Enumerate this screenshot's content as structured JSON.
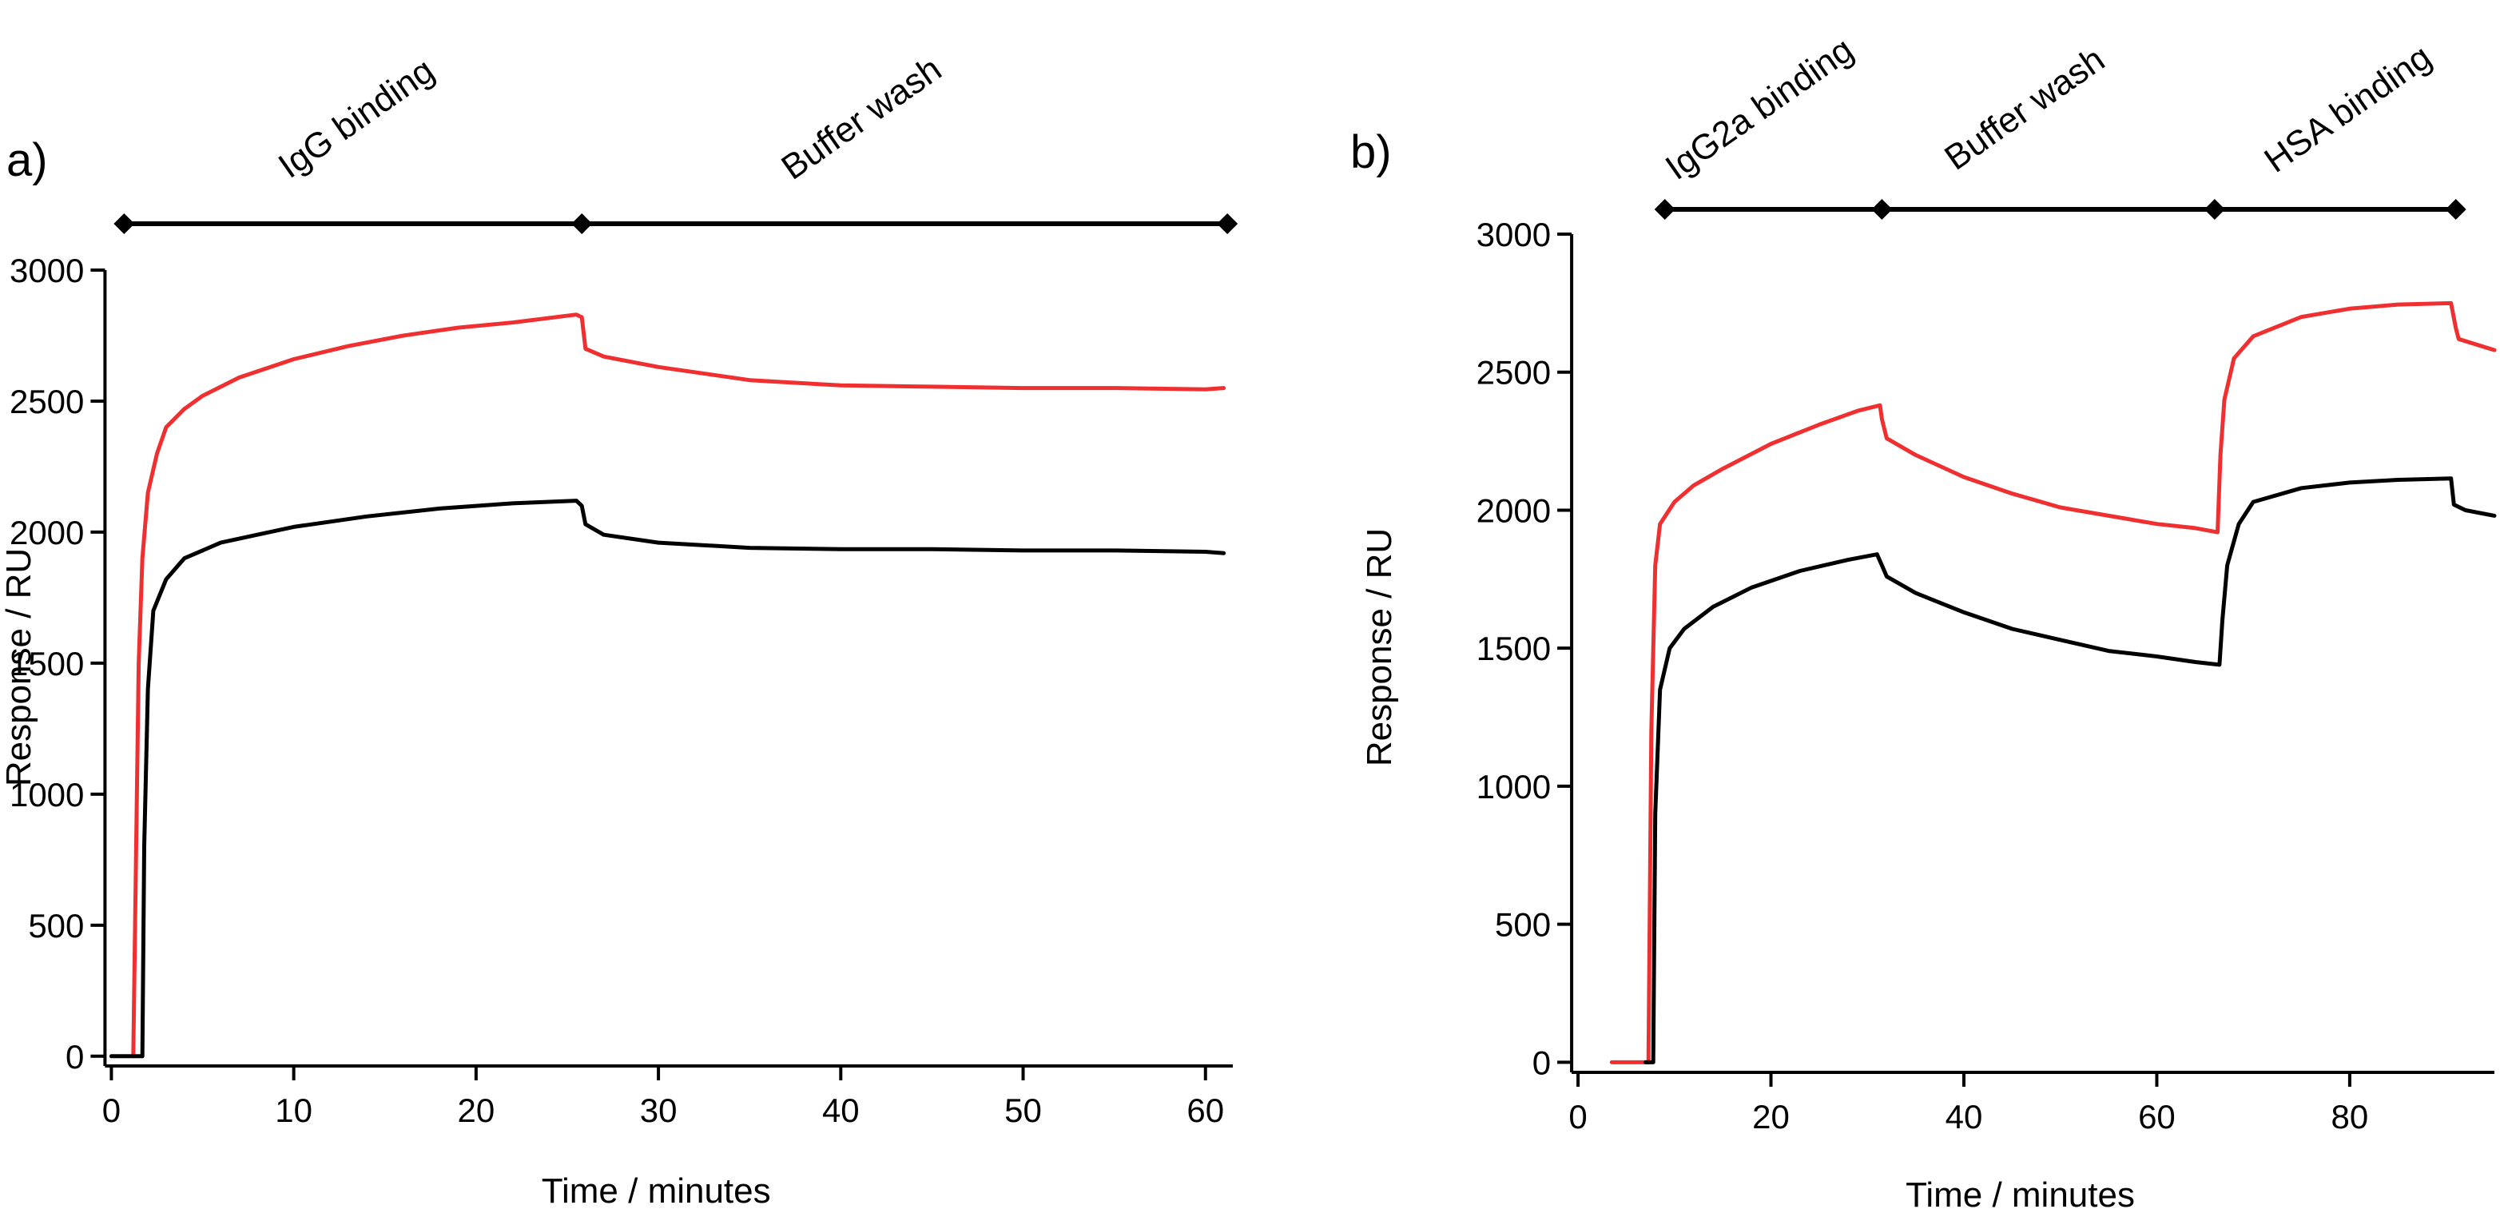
{
  "chart_data": [
    {
      "type": "line",
      "panel_label": "a)",
      "xlabel": "Time / minutes",
      "ylabel": "Response / RU",
      "xlim": [
        -0.5,
        61.5
      ],
      "ylim": [
        -25,
        3000
      ],
      "xticks": [
        0,
        10,
        20,
        30,
        40,
        50,
        60
      ],
      "yticks": [
        0,
        500,
        1000,
        1500,
        2000,
        2500,
        3000
      ],
      "phases": {
        "boundaries": [
          0.7,
          25.8,
          61.2
        ],
        "labels": [
          "IgG binding",
          "Buffer wash"
        ],
        "label_positions": [
          13.8,
          41.5
        ]
      },
      "series": [
        {
          "name": "red",
          "color": "#f03030",
          "points": [
            [
              1.2,
              0
            ],
            [
              1.5,
              1500
            ],
            [
              1.7,
              1900
            ],
            [
              2,
              2150
            ],
            [
              2.5,
              2300
            ],
            [
              3,
              2400
            ],
            [
              4,
              2470
            ],
            [
              5,
              2520
            ],
            [
              7,
              2590
            ],
            [
              10,
              2660
            ],
            [
              13,
              2710
            ],
            [
              16,
              2750
            ],
            [
              19,
              2780
            ],
            [
              22,
              2800
            ],
            [
              25.5,
              2830
            ],
            [
              25.8,
              2820
            ],
            [
              26,
              2700
            ],
            [
              27,
              2670
            ],
            [
              30,
              2630
            ],
            [
              35,
              2580
            ],
            [
              40,
              2560
            ],
            [
              45,
              2555
            ],
            [
              50,
              2550
            ],
            [
              55,
              2550
            ],
            [
              60,
              2545
            ],
            [
              61,
              2550
            ]
          ]
        },
        {
          "name": "black",
          "color": "#000000",
          "points": [
            [
              0,
              0
            ],
            [
              0.3,
              0
            ],
            [
              1.5,
              0
            ],
            [
              1.7,
              0
            ],
            [
              1.8,
              800
            ],
            [
              2,
              1400
            ],
            [
              2.3,
              1700
            ],
            [
              3,
              1820
            ],
            [
              4,
              1900
            ],
            [
              6,
              1960
            ],
            [
              8,
              1990
            ],
            [
              10,
              2020
            ],
            [
              14,
              2060
            ],
            [
              18,
              2090
            ],
            [
              22,
              2110
            ],
            [
              25.5,
              2120
            ],
            [
              25.8,
              2100
            ],
            [
              26,
              2030
            ],
            [
              27,
              1990
            ],
            [
              30,
              1960
            ],
            [
              35,
              1940
            ],
            [
              40,
              1935
            ],
            [
              45,
              1935
            ],
            [
              50,
              1930
            ],
            [
              55,
              1930
            ],
            [
              60,
              1925
            ],
            [
              61,
              1920
            ]
          ]
        }
      ]
    },
    {
      "type": "line",
      "panel_label": "b)",
      "xlabel": "Time / minutes",
      "ylabel": "Response / RU",
      "xlim": [
        -1,
        95
      ],
      "ylim": [
        -25,
        3000
      ],
      "xticks": [
        0,
        20,
        40,
        60,
        80
      ],
      "yticks": [
        0,
        500,
        1000,
        1500,
        2000,
        2500,
        3000
      ],
      "phases": {
        "boundaries": [
          9,
          31.5,
          66,
          91
        ],
        "labels": [
          "IgG2a binding",
          "Buffer wash",
          "HSA binding"
        ],
        "label_positions": [
          19.5,
          47,
          80.5
        ]
      },
      "series": [
        {
          "name": "red",
          "color": "#f03030",
          "points": [
            [
              3.5,
              0
            ],
            [
              7,
              0
            ],
            [
              7.3,
              0
            ],
            [
              7.6,
              1200
            ],
            [
              8,
              1800
            ],
            [
              8.5,
              1950
            ],
            [
              10,
              2030
            ],
            [
              12,
              2090
            ],
            [
              15,
              2150
            ],
            [
              20,
              2240
            ],
            [
              25,
              2310
            ],
            [
              29,
              2360
            ],
            [
              31.3,
              2380
            ],
            [
              31.5,
              2330
            ],
            [
              32,
              2260
            ],
            [
              35,
              2200
            ],
            [
              40,
              2120
            ],
            [
              45,
              2060
            ],
            [
              50,
              2010
            ],
            [
              55,
              1980
            ],
            [
              60,
              1950
            ],
            [
              64,
              1935
            ],
            [
              66.3,
              1920
            ],
            [
              66.6,
              2200
            ],
            [
              67,
              2400
            ],
            [
              68,
              2550
            ],
            [
              70,
              2630
            ],
            [
              75,
              2700
            ],
            [
              80,
              2730
            ],
            [
              85,
              2745
            ],
            [
              90.5,
              2750
            ],
            [
              91,
              2660
            ],
            [
              91.3,
              2620
            ],
            [
              95,
              2580
            ]
          ]
        },
        {
          "name": "black",
          "color": "#000000",
          "points": [
            [
              7,
              0
            ],
            [
              7.8,
              0
            ],
            [
              8,
              900
            ],
            [
              8.5,
              1350
            ],
            [
              9.5,
              1500
            ],
            [
              11,
              1570
            ],
            [
              14,
              1650
            ],
            [
              18,
              1720
            ],
            [
              23,
              1780
            ],
            [
              28,
              1820
            ],
            [
              31,
              1840
            ],
            [
              31.5,
              1800
            ],
            [
              32,
              1760
            ],
            [
              35,
              1700
            ],
            [
              40,
              1630
            ],
            [
              45,
              1570
            ],
            [
              50,
              1530
            ],
            [
              55,
              1490
            ],
            [
              60,
              1470
            ],
            [
              64,
              1450
            ],
            [
              66.5,
              1440
            ],
            [
              66.8,
              1600
            ],
            [
              67.3,
              1800
            ],
            [
              68.5,
              1950
            ],
            [
              70,
              2030
            ],
            [
              75,
              2080
            ],
            [
              80,
              2100
            ],
            [
              85,
              2110
            ],
            [
              90.5,
              2115
            ],
            [
              90.8,
              2020
            ],
            [
              92,
              2000
            ],
            [
              95,
              1980
            ]
          ]
        }
      ]
    }
  ]
}
